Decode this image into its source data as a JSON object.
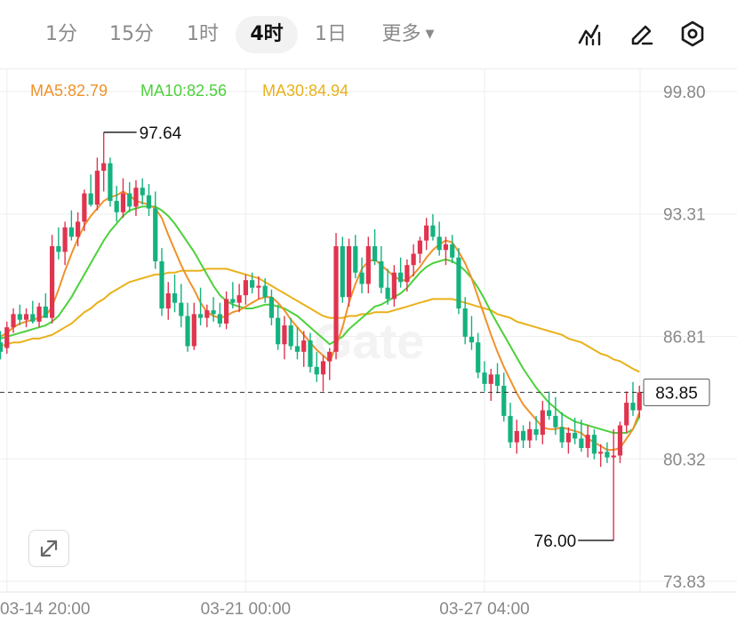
{
  "toolbar": {
    "timeframes": [
      "1分",
      "15分",
      "1时",
      "4时",
      "1日"
    ],
    "active_timeframe": "4时",
    "more_label": "更多",
    "icons": [
      "indicator-icon",
      "draw-pencil-icon",
      "settings-hex-icon"
    ]
  },
  "indicators": {
    "ma5": {
      "label": "MA5:82.79",
      "color": "#f0922b"
    },
    "ma10": {
      "label": "MA10:82.56",
      "color": "#4cd13b"
    },
    "ma30": {
      "label": "MA30:84.94",
      "color": "#e9b11a"
    }
  },
  "colors": {
    "up": "#e0344f",
    "down": "#14b27f",
    "grid": "#ededed"
  },
  "current_price_label": "83.85",
  "high_label": "97.64",
  "low_label": "76.00",
  "watermark": "Gate",
  "chart_data": {
    "type": "candlestick",
    "y_ticks": [
      99.8,
      93.31,
      86.81,
      80.32,
      73.83
    ],
    "ylim": [
      73.83,
      99.8
    ],
    "x_ticks": [
      "03-14 20:00",
      "03-21 00:00",
      "03-27 04:00"
    ],
    "x_tick_candle_index": [
      1,
      38,
      75
    ],
    "current_price": 83.85,
    "high": {
      "value": 97.64,
      "candle_index": 16
    },
    "low": {
      "value": 76.0,
      "candle_index": 95
    },
    "ohlc": [
      [
        86.5,
        87.1,
        85.6,
        86.0
      ],
      [
        86.2,
        87.6,
        85.9,
        87.3
      ],
      [
        87.3,
        88.3,
        87.0,
        88.0
      ],
      [
        88.0,
        88.5,
        87.4,
        87.7
      ],
      [
        87.7,
        88.3,
        87.3,
        88.0
      ],
      [
        88.0,
        88.7,
        87.5,
        87.6
      ],
      [
        87.6,
        88.6,
        87.3,
        88.4
      ],
      [
        88.4,
        89.1,
        87.8,
        87.8
      ],
      [
        87.8,
        92.2,
        87.5,
        91.6
      ],
      [
        91.6,
        92.6,
        90.9,
        91.3
      ],
      [
        91.3,
        92.9,
        90.6,
        92.6
      ],
      [
        92.6,
        93.5,
        91.9,
        92.1
      ],
      [
        92.1,
        93.4,
        91.6,
        92.9
      ],
      [
        92.9,
        94.6,
        92.4,
        94.4
      ],
      [
        94.4,
        95.4,
        93.7,
        93.8
      ],
      [
        93.8,
        96.3,
        93.5,
        95.6
      ],
      [
        95.6,
        97.64,
        94.5,
        96.0
      ],
      [
        96.0,
        96.3,
        93.7,
        94.0
      ],
      [
        94.0,
        94.8,
        92.9,
        93.4
      ],
      [
        93.4,
        95.2,
        93.1,
        94.4
      ],
      [
        94.4,
        95.0,
        93.4,
        93.7
      ],
      [
        93.7,
        95.1,
        93.2,
        94.7
      ],
      [
        94.7,
        95.2,
        93.8,
        94.3
      ],
      [
        94.3,
        94.9,
        93.2,
        93.6
      ],
      [
        93.6,
        94.5,
        90.4,
        90.8
      ],
      [
        90.8,
        91.5,
        87.9,
        88.3
      ],
      [
        88.3,
        89.7,
        87.7,
        89.1
      ],
      [
        89.1,
        90.1,
        88.1,
        88.6
      ],
      [
        88.6,
        89.6,
        87.3,
        87.9
      ],
      [
        87.9,
        88.6,
        86.0,
        86.3
      ],
      [
        86.3,
        88.6,
        86.1,
        88.0
      ],
      [
        88.0,
        89.4,
        87.4,
        87.8
      ],
      [
        87.8,
        88.5,
        87.3,
        88.2
      ],
      [
        88.2,
        88.9,
        87.6,
        88.0
      ],
      [
        88.0,
        88.6,
        87.3,
        87.5
      ],
      [
        87.5,
        89.2,
        87.2,
        88.8
      ],
      [
        88.8,
        89.7,
        88.3,
        88.6
      ],
      [
        88.6,
        89.6,
        88.1,
        89.0
      ],
      [
        89.0,
        90.1,
        88.5,
        89.8
      ],
      [
        89.8,
        90.2,
        89.1,
        89.4
      ],
      [
        89.4,
        90.0,
        88.8,
        89.5
      ],
      [
        89.5,
        89.9,
        88.6,
        88.9
      ],
      [
        88.9,
        89.3,
        87.4,
        87.8
      ],
      [
        87.8,
        88.5,
        86.1,
        86.4
      ],
      [
        86.4,
        87.9,
        85.6,
        87.4
      ],
      [
        87.4,
        87.8,
        86.1,
        86.3
      ],
      [
        86.3,
        87.3,
        85.6,
        86.0
      ],
      [
        86.0,
        87.1,
        85.2,
        86.6
      ],
      [
        86.6,
        87.0,
        84.9,
        85.2
      ],
      [
        85.2,
        86.0,
        84.4,
        84.8
      ],
      [
        84.8,
        85.8,
        83.9,
        85.5
      ],
      [
        85.5,
        86.2,
        84.5,
        86.0
      ],
      [
        86.0,
        92.3,
        85.6,
        91.6
      ],
      [
        91.6,
        92.1,
        88.6,
        88.9
      ],
      [
        88.9,
        92.0,
        88.4,
        91.6
      ],
      [
        91.6,
        92.2,
        89.9,
        90.2
      ],
      [
        90.2,
        91.0,
        89.1,
        89.6
      ],
      [
        89.6,
        92.1,
        89.1,
        91.6
      ],
      [
        91.6,
        92.5,
        90.6,
        90.8
      ],
      [
        90.8,
        91.6,
        89.1,
        89.4
      ],
      [
        89.4,
        90.4,
        88.5,
        88.8
      ],
      [
        88.8,
        90.6,
        88.4,
        90.2
      ],
      [
        90.2,
        91.0,
        89.4,
        89.7
      ],
      [
        89.7,
        90.9,
        89.2,
        90.6
      ],
      [
        90.6,
        91.7,
        90.0,
        91.2
      ],
      [
        91.2,
        92.1,
        90.7,
        91.9
      ],
      [
        91.9,
        93.1,
        91.4,
        92.7
      ],
      [
        92.7,
        93.3,
        91.9,
        92.1
      ],
      [
        92.1,
        92.9,
        91.1,
        91.4
      ],
      [
        91.4,
        92.1,
        90.6,
        91.7
      ],
      [
        91.7,
        92.2,
        90.7,
        91.0
      ],
      [
        91.0,
        91.5,
        88.0,
        88.3
      ],
      [
        88.3,
        88.9,
        86.4,
        86.8
      ],
      [
        86.8,
        87.9,
        86.1,
        86.5
      ],
      [
        86.5,
        87.0,
        84.6,
        84.9
      ],
      [
        84.9,
        85.5,
        83.9,
        84.3
      ],
      [
        84.3,
        85.1,
        83.4,
        84.8
      ],
      [
        84.8,
        85.4,
        83.8,
        84.2
      ],
      [
        84.2,
        84.9,
        82.3,
        82.6
      ],
      [
        82.6,
        83.3,
        80.9,
        81.2
      ],
      [
        81.2,
        82.4,
        80.6,
        81.8
      ],
      [
        81.8,
        82.1,
        80.9,
        81.3
      ],
      [
        81.3,
        82.3,
        80.9,
        81.9
      ],
      [
        81.9,
        82.6,
        81.3,
        81.6
      ],
      [
        81.6,
        83.4,
        81.1,
        82.9
      ],
      [
        82.9,
        83.9,
        82.4,
        82.6
      ],
      [
        82.6,
        83.6,
        81.6,
        82.0
      ],
      [
        82.0,
        82.8,
        80.9,
        81.2
      ],
      [
        81.2,
        82.0,
        80.6,
        81.7
      ],
      [
        81.7,
        82.5,
        81.1,
        81.4
      ],
      [
        81.4,
        82.4,
        80.7,
        80.9
      ],
      [
        80.9,
        82.1,
        80.4,
        81.6
      ],
      [
        81.6,
        81.9,
        80.3,
        80.6
      ],
      [
        80.6,
        81.1,
        79.9,
        80.7
      ],
      [
        80.7,
        81.2,
        80.1,
        80.4
      ],
      [
        80.4,
        81.9,
        76.0,
        80.5
      ],
      [
        80.5,
        82.3,
        80.1,
        82.1
      ],
      [
        82.1,
        83.9,
        81.7,
        83.3
      ],
      [
        83.3,
        84.4,
        82.6,
        82.9
      ],
      [
        82.9,
        84.2,
        82.5,
        83.85
      ]
    ],
    "ma5": [
      86.8,
      87.0,
      87.3,
      87.5,
      87.6,
      87.7,
      87.8,
      87.9,
      88.4,
      89.3,
      90.3,
      91.2,
      92.0,
      92.7,
      93.2,
      93.6,
      94.0,
      94.2,
      94.3,
      94.5,
      94.3,
      94.0,
      93.9,
      93.8,
      93.6,
      93.1,
      92.2,
      91.4,
      90.6,
      89.9,
      89.3,
      88.6,
      88.1,
      87.9,
      87.8,
      87.9,
      88.1,
      88.2,
      88.4,
      88.6,
      88.8,
      88.9,
      88.9,
      88.6,
      88.2,
      87.7,
      87.3,
      86.9,
      86.5,
      86.1,
      85.8,
      85.5,
      86.3,
      87.3,
      88.6,
      89.6,
      90.4,
      90.8,
      90.9,
      90.6,
      90.3,
      90.0,
      89.8,
      89.8,
      90.1,
      90.5,
      91.0,
      91.4,
      91.7,
      91.9,
      91.8,
      91.3,
      90.7,
      89.9,
      88.9,
      87.9,
      86.9,
      86.0,
      85.2,
      84.5,
      83.8,
      83.2,
      82.8,
      82.4,
      82.0,
      81.9,
      81.9,
      82.0,
      81.9,
      81.8,
      81.7,
      81.4,
      81.2,
      81.0,
      80.8,
      80.8,
      80.9,
      81.4,
      81.9,
      82.79
    ],
    "ma10": [
      86.7,
      86.8,
      86.9,
      87.0,
      87.1,
      87.2,
      87.3,
      87.4,
      87.6,
      87.9,
      88.4,
      88.9,
      89.5,
      90.1,
      90.7,
      91.3,
      91.9,
      92.4,
      92.8,
      93.2,
      93.5,
      93.6,
      93.7,
      93.7,
      93.7,
      93.5,
      93.2,
      92.8,
      92.3,
      91.8,
      91.3,
      90.7,
      90.1,
      89.5,
      89.0,
      88.7,
      88.5,
      88.4,
      88.3,
      88.3,
      88.4,
      88.5,
      88.5,
      88.4,
      88.3,
      88.1,
      87.9,
      87.6,
      87.3,
      87.0,
      86.7,
      86.4,
      86.6,
      86.8,
      87.2,
      87.5,
      87.8,
      88.1,
      88.4,
      88.5,
      88.7,
      88.9,
      89.1,
      89.4,
      89.8,
      90.2,
      90.5,
      90.7,
      90.8,
      90.9,
      90.8,
      90.6,
      90.3,
      89.9,
      89.4,
      88.8,
      88.1,
      87.5,
      86.9,
      86.3,
      85.7,
      85.1,
      84.6,
      84.1,
      83.7,
      83.3,
      83.0,
      82.7,
      82.5,
      82.3,
      82.2,
      82.1,
      82.0,
      81.9,
      81.8,
      81.7,
      81.7,
      81.7,
      81.9,
      82.56
    ],
    "ma30": [
      86.3,
      86.4,
      86.5,
      86.5,
      86.6,
      86.7,
      86.7,
      86.8,
      86.9,
      87.1,
      87.3,
      87.5,
      87.8,
      88.1,
      88.3,
      88.6,
      88.8,
      89.1,
      89.3,
      89.5,
      89.7,
      89.8,
      89.9,
      90.0,
      90.1,
      90.1,
      90.2,
      90.2,
      90.3,
      90.3,
      90.3,
      90.3,
      90.4,
      90.4,
      90.4,
      90.4,
      90.3,
      90.2,
      90.1,
      90.0,
      89.9,
      89.7,
      89.5,
      89.3,
      89.1,
      88.9,
      88.7,
      88.5,
      88.3,
      88.1,
      87.9,
      87.8,
      87.8,
      87.8,
      87.9,
      87.9,
      88.0,
      88.0,
      88.1,
      88.1,
      88.1,
      88.2,
      88.3,
      88.4,
      88.5,
      88.6,
      88.7,
      88.8,
      88.8,
      88.8,
      88.8,
      88.7,
      88.6,
      88.5,
      88.4,
      88.3,
      88.2,
      88.0,
      87.9,
      87.8,
      87.6,
      87.5,
      87.4,
      87.3,
      87.2,
      87.1,
      87.0,
      86.9,
      86.7,
      86.6,
      86.5,
      86.3,
      86.1,
      85.9,
      85.8,
      85.6,
      85.5,
      85.3,
      85.1,
      84.94
    ]
  }
}
